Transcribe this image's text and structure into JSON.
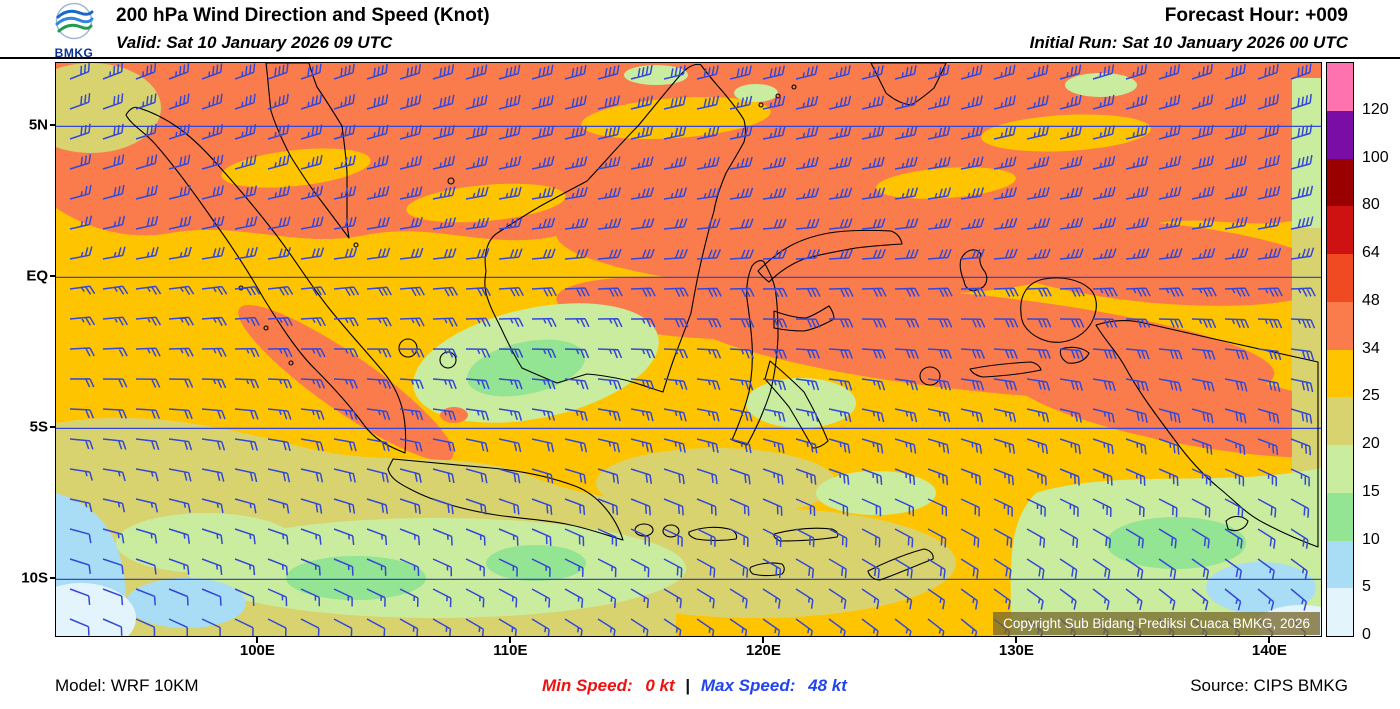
{
  "header": {
    "logo_text": "BMKG",
    "title": "200 hPa Wind Direction and Speed (Knot)",
    "valid": "Valid: Sat 10 January 2026 09 UTC",
    "forecast_hour": "Forecast Hour: +009",
    "initial_run": "Initial Run: Sat 10 January 2026 00 UTC"
  },
  "map": {
    "y_ticks": [
      {
        "label": "5N",
        "lat": 5
      },
      {
        "label": "EQ",
        "lat": 0
      },
      {
        "label": "5S",
        "lat": -5
      },
      {
        "label": "10S",
        "lat": -10
      }
    ],
    "x_ticks": [
      {
        "label": "100E",
        "lon": 100
      },
      {
        "label": "110E",
        "lon": 110
      },
      {
        "label": "120E",
        "lon": 120
      },
      {
        "label": "130E",
        "lon": 130
      },
      {
        "label": "140E",
        "lon": 140
      }
    ],
    "copyright": "Copyright Sub Bidang Prediksi Cuaca BMKG, 2026",
    "wind_barb_color": "#3348D8",
    "gridline_color": "#3348D8",
    "coastline_color": "#000000"
  },
  "colorbar": {
    "labels": [
      "120",
      "100",
      "80",
      "64",
      "48",
      "34",
      "25",
      "20",
      "15",
      "10",
      "5",
      "0"
    ],
    "colors_top_to_bottom": [
      "#FF72B0",
      "#7A0DA6",
      "#9B0000",
      "#CE1212",
      "#F04A22",
      "#FA7C4D",
      "#FFC400",
      "#D9D36F",
      "#C9EC9E",
      "#93E493",
      "#A9DCF5",
      "#E4F4FC"
    ]
  },
  "footer": {
    "model": "Model: WRF 10KM",
    "min_speed_label": "Min Speed:",
    "min_speed_value": "0 kt",
    "separator": "|",
    "max_speed_label": "Max Speed:",
    "max_speed_value": "48 kt",
    "source": "Source: CIPS BMKG",
    "min_speed_color": "#EE1111",
    "max_speed_color": "#2244EE"
  },
  "chart_data": {
    "type": "heatmap",
    "title": "200 hPa Wind Direction and Speed (Knot)",
    "units": "knot",
    "lon_range": [
      92,
      142
    ],
    "lat_range": [
      -12,
      7.5
    ],
    "speed_levels_kt": [
      0,
      5,
      10,
      15,
      20,
      25,
      34,
      48,
      64,
      80,
      100,
      120
    ],
    "min_speed_kt": 0,
    "max_speed_kt": 48,
    "legend_position": "right",
    "wind_grid": {
      "lons": [
        92,
        100,
        110,
        120,
        130,
        142
      ],
      "lats": [
        7,
        4,
        1,
        -2,
        -5,
        -8,
        -12
      ],
      "direction_from_deg": [
        [
          68,
          70,
          74,
          76,
          74,
          70
        ],
        [
          72,
          74,
          77,
          80,
          78,
          74
        ],
        [
          78,
          80,
          84,
          86,
          84,
          80
        ],
        [
          86,
          88,
          90,
          92,
          92,
          96
        ],
        [
          94,
          98,
          101,
          104,
          106,
          110
        ],
        [
          104,
          108,
          112,
          116,
          118,
          122
        ],
        [
          114,
          118,
          123,
          127,
          132,
          136
        ]
      ],
      "speed_kt": [
        [
          32,
          38,
          40,
          38,
          36,
          38
        ],
        [
          28,
          35,
          38,
          36,
          35,
          40
        ],
        [
          25,
          30,
          32,
          30,
          33,
          38
        ],
        [
          22,
          26,
          25,
          28,
          30,
          33
        ],
        [
          18,
          22,
          22,
          25,
          26,
          28
        ],
        [
          12,
          16,
          18,
          20,
          22,
          20
        ],
        [
          8,
          10,
          13,
          15,
          14,
          10
        ]
      ]
    }
  }
}
